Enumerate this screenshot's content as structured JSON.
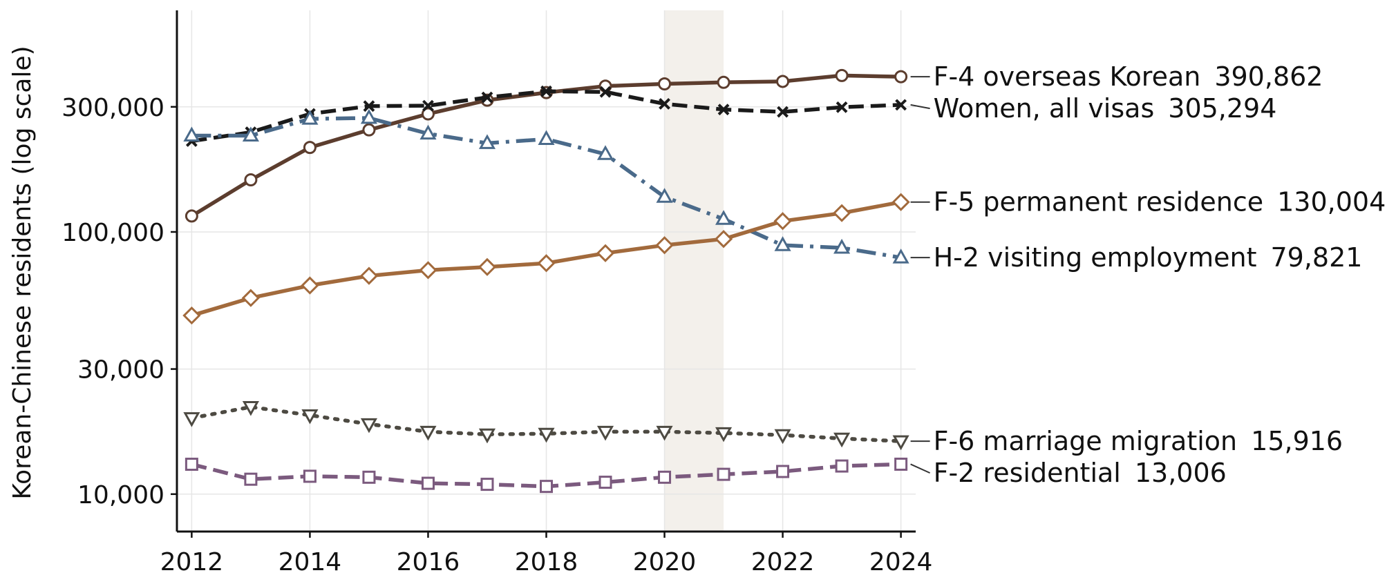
{
  "chart_data": {
    "type": "line",
    "title": "",
    "xlabel": "",
    "ylabel": "Korean-Chinese residents (log scale)",
    "yscale": "log",
    "xlim": [
      2011.75,
      2024.25
    ],
    "ylim": [
      7200,
      700000
    ],
    "grid": true,
    "x": [
      2012,
      2013,
      2014,
      2015,
      2016,
      2017,
      2018,
      2019,
      2020,
      2021,
      2022,
      2023,
      2024
    ],
    "x_ticks": [
      2012,
      2014,
      2016,
      2018,
      2020,
      2022,
      2024
    ],
    "x_tick_labels": [
      "2012",
      "2014",
      "2016",
      "2018",
      "2020",
      "2022",
      "2024"
    ],
    "y_ticks": [
      10000,
      30000,
      100000,
      300000
    ],
    "y_tick_labels": [
      "10,000",
      "30,000",
      "100,000",
      "300,000"
    ],
    "highlight_band": {
      "x0": 2020,
      "x1": 2021,
      "color": "#f3f0eb"
    },
    "series": [
      {
        "name": "F-4 overseas Korean",
        "end_value_label": "390,862",
        "color": "#5c3d2e",
        "style": "solid",
        "marker": "circle",
        "values": [
          115000,
          158000,
          210000,
          245000,
          282000,
          318000,
          340000,
          360000,
          367000,
          372000,
          375000,
          395000,
          390862
        ]
      },
      {
        "name": "Women, all visas",
        "end_value_label": "305,294",
        "color": "#1a1a1a",
        "style": "dashed",
        "marker": "x",
        "values": [
          222000,
          240000,
          282000,
          302000,
          303000,
          326000,
          344000,
          342000,
          308000,
          293000,
          287000,
          299000,
          305294
        ]
      },
      {
        "name": "H-2 visiting employment",
        "end_value_label": "79,821",
        "color": "#4a6a8a",
        "style": "dashdot",
        "marker": "triangle-up",
        "values": [
          233000,
          233000,
          270000,
          272000,
          237000,
          218000,
          226000,
          198000,
          136000,
          112000,
          89000,
          87000,
          79821
        ]
      },
      {
        "name": "F-5 permanent residence",
        "end_value_label": "130,004",
        "color": "#a26a3c",
        "style": "solid",
        "marker": "diamond",
        "values": [
          48000,
          56000,
          62500,
          68000,
          71500,
          73500,
          76000,
          83000,
          89000,
          94000,
          110000,
          118000,
          130004
        ]
      },
      {
        "name": "F-6 marriage migration",
        "end_value_label": "15,916",
        "color": "#4d4a42",
        "style": "dotted",
        "marker": "triangle-down",
        "values": [
          19500,
          21500,
          20000,
          18500,
          17300,
          16900,
          17000,
          17300,
          17300,
          17100,
          16800,
          16300,
          15916
        ]
      },
      {
        "name": "F-2 residential",
        "end_value_label": "13,006",
        "color": "#7b5a7e",
        "style": "dashed",
        "marker": "square",
        "values": [
          13000,
          11400,
          11700,
          11600,
          11000,
          10900,
          10700,
          11100,
          11600,
          11900,
          12200,
          12800,
          13006
        ]
      }
    ]
  }
}
